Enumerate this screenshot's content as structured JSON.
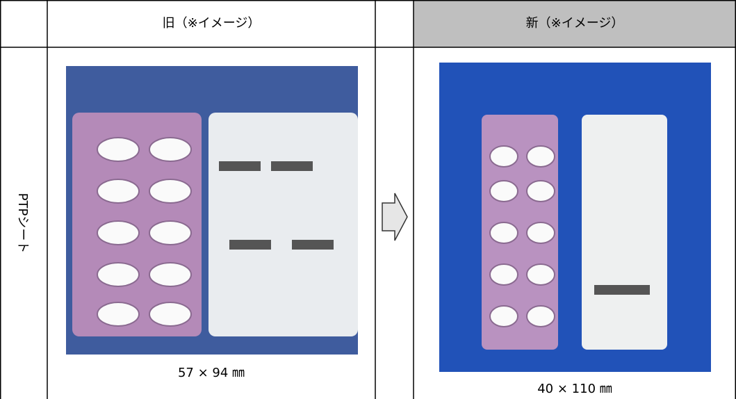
{
  "table": {
    "header": {
      "old": "旧（※イメージ）",
      "new": "新（※イメージ）"
    },
    "row": {
      "label": "PTPシート",
      "old_caption": "57 × 94 ㎜",
      "new_caption": "40 × 110 ㎜"
    }
  }
}
